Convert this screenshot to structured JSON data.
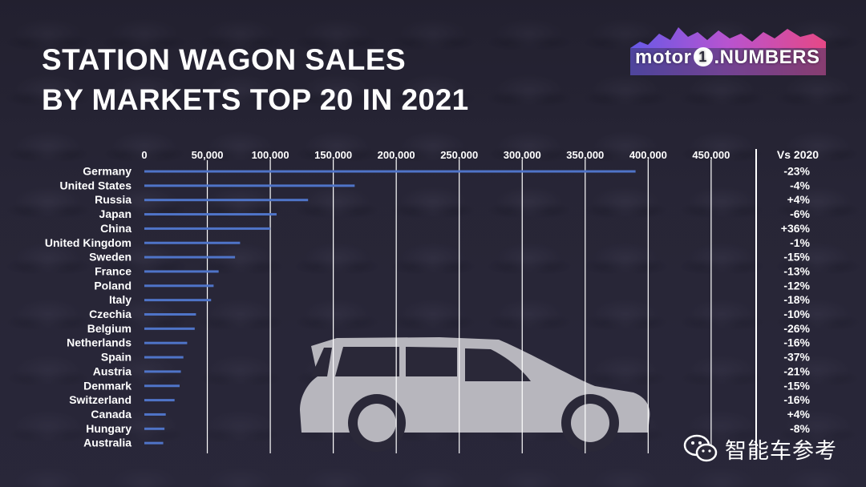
{
  "title": {
    "line1": "STATION WAGON SALES",
    "line2": "BY MARKETS TOP 20 IN 2021"
  },
  "logo": {
    "text_before": "motor",
    "text_one": "1",
    "text_after": ".NUMBERS"
  },
  "watermark": {
    "text": "智能车参考",
    "icon": "wechat-icon"
  },
  "colors": {
    "bar": "#4f74c8",
    "gridline": "#ffffff",
    "text": "#ffffff",
    "car_silhouette": "#b7b6bd"
  },
  "chart_data": {
    "type": "bar",
    "orientation": "horizontal",
    "title": "STATION WAGON SALES BY MARKETS TOP 20 IN 2021",
    "categories": [
      "Germany",
      "United States",
      "Russia",
      "Japan",
      "China",
      "United Kingdom",
      "Sweden",
      "France",
      "Poland",
      "Italy",
      "Czechia",
      "Belgium",
      "Netherlands",
      "Spain",
      "Austria",
      "Denmark",
      "Switzerland",
      "Canada",
      "Hungary",
      "Australia"
    ],
    "values": [
      390000,
      167000,
      130000,
      105000,
      100000,
      76000,
      72000,
      59000,
      55000,
      53000,
      41000,
      40000,
      34000,
      31000,
      29000,
      28000,
      24000,
      17000,
      16000,
      15000
    ],
    "change_header": "Vs 2020",
    "changes": [
      "-23%",
      "-4%",
      "+4%",
      "-6%",
      "+36%",
      "-1%",
      "-15%",
      "-13%",
      "-12%",
      "-18%",
      "-10%",
      "-26%",
      "-16%",
      "-37%",
      "-21%",
      "-15%",
      "-16%",
      "+4%",
      "-8%",
      ""
    ],
    "xlim": [
      0,
      480000
    ],
    "xticks": [
      0,
      50000,
      100000,
      150000,
      200000,
      250000,
      300000,
      350000,
      400000,
      450000
    ],
    "xtick_labels": [
      "0",
      "50,000",
      "100,000",
      "150,000",
      "200,000",
      "250,000",
      "300,000",
      "350,000",
      "400,000",
      "450,000"
    ],
    "axis_position": "top",
    "grid": true,
    "legend": "none"
  }
}
